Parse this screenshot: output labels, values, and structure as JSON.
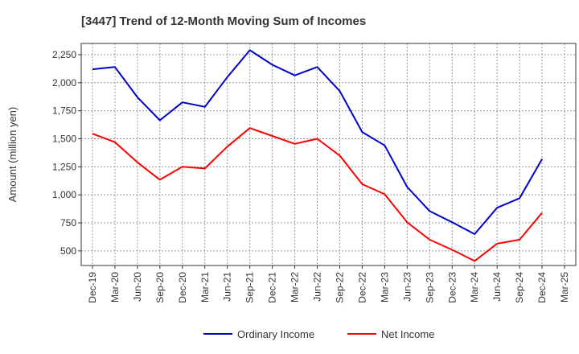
{
  "chart_data": {
    "type": "line",
    "title": "[3447]  Trend of 12-Month Moving Sum of Incomes",
    "xlabel": "",
    "ylabel": "Amount (million yen)",
    "ylim": [
      370,
      2350
    ],
    "yticks": [
      500,
      750,
      1000,
      1250,
      1500,
      1750,
      2000,
      2250
    ],
    "ytick_labels": [
      "500",
      "750",
      "1,000",
      "1,250",
      "1,500",
      "1,750",
      "2,000",
      "2,250"
    ],
    "categories": [
      "Dec-19",
      "Mar-20",
      "Jun-20",
      "Sep-20",
      "Dec-20",
      "Mar-21",
      "Jun-21",
      "Sep-21",
      "Dec-21",
      "Mar-22",
      "Jun-22",
      "Sep-22",
      "Dec-22",
      "Mar-23",
      "Jun-23",
      "Sep-23",
      "Dec-23",
      "Mar-24",
      "Jun-24",
      "Sep-24",
      "Dec-24",
      "Mar-25"
    ],
    "grid": true,
    "legend_position": "bottom",
    "series": [
      {
        "name": "Ordinary Income",
        "color": "#0000cc",
        "values": [
          2120,
          2140,
          1870,
          1665,
          1825,
          1785,
          2050,
          2290,
          2160,
          2065,
          2140,
          1925,
          1560,
          1440,
          1070,
          855,
          755,
          650,
          885,
          970,
          1320,
          null
        ]
      },
      {
        "name": "Net Income",
        "color": "#ff0000",
        "values": [
          1545,
          1470,
          1290,
          1135,
          1250,
          1235,
          1430,
          1595,
          1525,
          1455,
          1500,
          1350,
          1095,
          1005,
          755,
          600,
          510,
          410,
          565,
          600,
          840,
          null
        ]
      }
    ]
  }
}
